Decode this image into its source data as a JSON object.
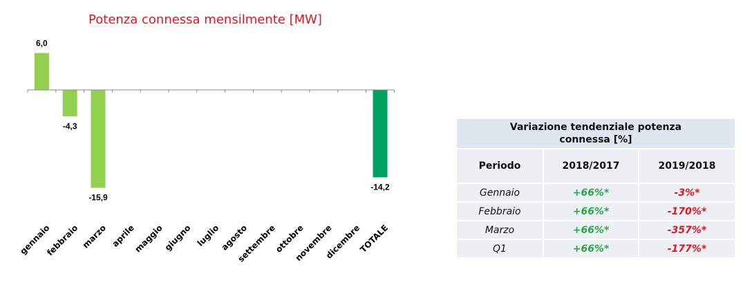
{
  "chart_data": {
    "type": "bar",
    "title": "Potenza connessa mensilmente [MW]",
    "categories": [
      "gennaio",
      "febbraio",
      "marzo",
      "aprile",
      "maggio",
      "giugno",
      "luglio",
      "agosto",
      "settembre",
      "ottobre",
      "novembre",
      "dicembre",
      "TOTALE"
    ],
    "values": [
      6.0,
      -4.3,
      -15.9,
      null,
      null,
      null,
      null,
      null,
      null,
      null,
      null,
      null,
      -14.2
    ],
    "labels": [
      "6,0",
      "-4,3",
      "-15,9",
      "",
      "",
      "",
      "",
      "",
      "",
      "",
      "",
      "",
      "-14,2"
    ],
    "colors": {
      "month": "#92d050",
      "total": "#00a060"
    },
    "ylim": [
      -17.5,
      8
    ],
    "grid": false,
    "legend": "none"
  },
  "table": {
    "caption": [
      "Variazione tendenziale potenza",
      "connessa [%]"
    ],
    "headers": [
      "Periodo",
      "2018/2017",
      "2019/2018"
    ],
    "rows": [
      {
        "period": "Gennaio",
        "v1": "+66%*",
        "v2": "-3%*"
      },
      {
        "period": "Febbraio",
        "v1": "+66%*",
        "v2": "-170%*"
      },
      {
        "period": "Marzo",
        "v1": "+66%*",
        "v2": "-357%*"
      },
      {
        "period": "Q1",
        "v1": "+66%*",
        "v2": "-177%*"
      }
    ],
    "colors": {
      "positive": "#28a745",
      "negative": "#e3121b"
    }
  }
}
